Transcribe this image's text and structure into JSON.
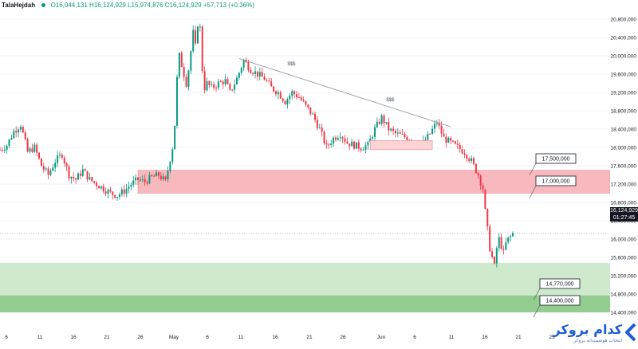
{
  "header": {
    "symbol": "TalaHejdah",
    "ohlc": "O16,044,131 H16,124,929 L15,974,876 C16,124,929 +57,713 (+0.36%)"
  },
  "colors": {
    "up": "#089981",
    "down": "#f23645",
    "candle": "#1b1f2a",
    "red_zone": "#f7b9bd",
    "light_green_zone": "#cfe9cc",
    "dark_green_zone": "#93cc8f"
  },
  "price_tag": {
    "price": "16,124,929",
    "countdown": "01:27:45"
  },
  "logo": {
    "brand": "کدام بروکر",
    "tagline": "انتخاب هوشمندانه بروکر",
    "icon": "brand-chevron-icon"
  },
  "chart_data": {
    "type": "candlestick",
    "title": "",
    "y_axis": {
      "min": 14400000,
      "max": 20800000,
      "ticks": [
        "20,800,000",
        "20,400,000",
        "20,000,000",
        "19,600,000",
        "19,200,000",
        "18,800,000",
        "18,400,000",
        "18,000,000",
        "17,600,000",
        "17,200,000",
        "16,800,000",
        "16,400,000",
        "16,000,000",
        "15,600,000",
        "15,200,000",
        "14,800,000",
        "14,400,000"
      ]
    },
    "x_axis": {
      "ticks": [
        "6",
        "11",
        "16",
        "21",
        "26",
        "May",
        "6",
        "11",
        "16",
        "21",
        "26",
        "Jun",
        "6",
        "11",
        "16",
        "21",
        "25"
      ]
    },
    "close_path": [
      [
        0,
        17950000
      ],
      [
        3,
        18050000
      ],
      [
        6,
        18350000
      ],
      [
        9,
        18500000
      ],
      [
        12,
        17900000
      ],
      [
        15,
        18000000
      ],
      [
        18,
        17600000
      ],
      [
        21,
        17400000
      ],
      [
        24,
        17700000
      ],
      [
        27,
        17850000
      ],
      [
        30,
        17400000
      ],
      [
        33,
        17300000
      ],
      [
        36,
        17500000
      ],
      [
        39,
        17300000
      ],
      [
        42,
        17200000
      ],
      [
        45,
        17100000
      ],
      [
        48,
        17000000
      ],
      [
        51,
        16950000
      ],
      [
        54,
        17050000
      ],
      [
        57,
        17200000
      ],
      [
        60,
        17300000
      ],
      [
        63,
        17250000
      ],
      [
        66,
        17350000
      ],
      [
        69,
        17400000
      ],
      [
        72,
        17250000
      ],
      [
        75,
        18000000
      ],
      [
        76,
        18500000
      ],
      [
        77,
        19500000
      ],
      [
        78,
        20000000
      ],
      [
        79,
        19800000
      ],
      [
        80,
        19600000
      ],
      [
        81,
        19400000
      ],
      [
        82,
        19700000
      ],
      [
        83,
        20100000
      ],
      [
        84,
        20500000
      ],
      [
        85,
        20200000
      ],
      [
        86,
        20700000
      ],
      [
        87,
        20600000
      ],
      [
        88,
        19700000
      ],
      [
        89,
        19300000
      ],
      [
        90,
        19400000
      ],
      [
        92,
        19300000
      ],
      [
        95,
        19400000
      ],
      [
        98,
        19450000
      ],
      [
        100,
        19200000
      ],
      [
        103,
        19500000
      ],
      [
        106,
        19900000
      ],
      [
        109,
        19700000
      ],
      [
        112,
        19600000
      ],
      [
        115,
        19500000
      ],
      [
        118,
        19300000
      ],
      [
        121,
        19200000
      ],
      [
        124,
        19000000
      ],
      [
        127,
        19200000
      ],
      [
        130,
        19100000
      ],
      [
        133,
        18900000
      ],
      [
        136,
        18700000
      ],
      [
        139,
        18400000
      ],
      [
        142,
        18000000
      ],
      [
        145,
        18200000
      ],
      [
        148,
        18300000
      ],
      [
        151,
        18100000
      ],
      [
        154,
        18050000
      ],
      [
        157,
        18000000
      ],
      [
        160,
        18050000
      ],
      [
        163,
        18400000
      ],
      [
        166,
        18650000
      ],
      [
        169,
        18400000
      ],
      [
        172,
        18300000
      ],
      [
        175,
        18250000
      ],
      [
        178,
        18200000
      ],
      [
        181,
        18150000
      ],
      [
        184,
        18100000
      ],
      [
        187,
        18300000
      ],
      [
        190,
        18550000
      ],
      [
        193,
        18200000
      ],
      [
        196,
        18100000
      ],
      [
        199,
        18000000
      ],
      [
        202,
        17900000
      ],
      [
        205,
        17700000
      ],
      [
        208,
        17400000
      ],
      [
        210,
        17100000
      ],
      [
        211,
        16600000
      ],
      [
        212,
        16200000
      ],
      [
        213,
        15800000
      ],
      [
        214,
        15600000
      ],
      [
        215,
        15400000
      ],
      [
        216,
        15800000
      ],
      [
        217,
        16000000
      ],
      [
        218,
        15850000
      ],
      [
        219,
        15700000
      ],
      [
        220,
        15900000
      ],
      [
        221,
        16000000
      ],
      [
        222,
        16050000
      ],
      [
        223,
        16124929
      ]
    ],
    "zones": [
      {
        "name": "resistance-zone",
        "from": 17000000,
        "to": 17500000,
        "start_index": 60
      },
      {
        "name": "support-zone-upper",
        "from": 14770000,
        "to": 15480000,
        "start_index": 0
      },
      {
        "name": "support-zone-lower",
        "from": 14400000,
        "to": 14770000,
        "start_index": 0
      }
    ],
    "price_labels": [
      "17,500,000",
      "17,000,000",
      "14,770,000",
      "14,400,000"
    ],
    "trendline": {
      "from": [
        104,
        19940000
      ],
      "to": [
        196,
        18450000
      ]
    },
    "annotations": [
      "$$$",
      "$$$"
    ],
    "small_box": {
      "from_index": 161,
      "to_index": 188,
      "low": 17950000,
      "high": 18150000
    },
    "current_price_line": 16124929
  }
}
